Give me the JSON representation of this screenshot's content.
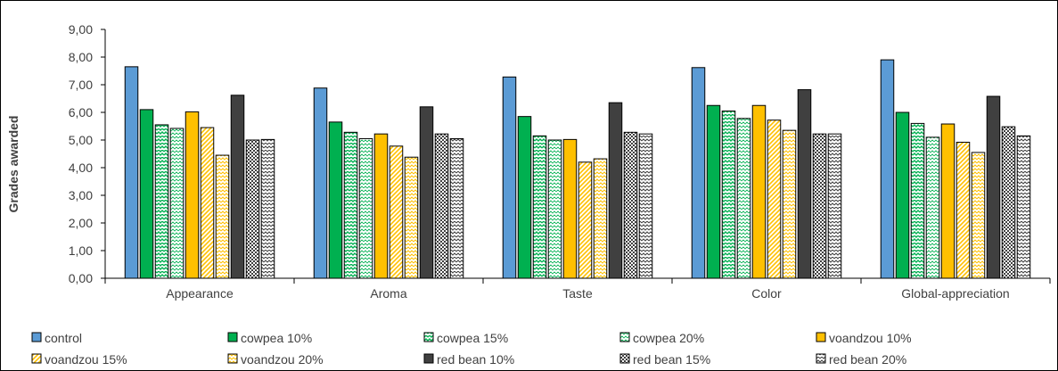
{
  "chart_data": {
    "type": "bar",
    "title": "",
    "xlabel": "",
    "ylabel": "Grades awarded",
    "ylim": [
      0,
      9
    ],
    "y_ticks": [
      "0,00",
      "1,00",
      "2,00",
      "3,00",
      "4,00",
      "5,00",
      "6,00",
      "7,00",
      "8,00",
      "9,00"
    ],
    "grid": false,
    "legend_position": "bottom",
    "categories": [
      "Appearance",
      "Aroma",
      "Taste",
      "Color",
      "Global-appreciation"
    ],
    "series": [
      {
        "name": "control",
        "values": [
          7.65,
          6.88,
          7.28,
          7.62,
          7.9
        ],
        "color": "#5b9bd5",
        "pattern": "solid"
      },
      {
        "name": "cowpea 10%",
        "values": [
          6.1,
          5.65,
          5.85,
          6.25,
          6.0
        ],
        "color": "#00b050",
        "pattern": "solid"
      },
      {
        "name": "cowpea 15%",
        "values": [
          5.55,
          5.28,
          5.15,
          6.05,
          5.6
        ],
        "color": "#00b050",
        "pattern": "zigzag"
      },
      {
        "name": "cowpea 20%",
        "values": [
          5.42,
          5.05,
          5.0,
          5.78,
          5.1
        ],
        "color": "#00b050",
        "pattern": "zigzag-light"
      },
      {
        "name": "voandzou 10%",
        "values": [
          6.02,
          5.22,
          5.02,
          6.25,
          5.58
        ],
        "color": "#ffc000",
        "pattern": "solid"
      },
      {
        "name": "voandzou 15%",
        "values": [
          5.45,
          4.78,
          4.2,
          5.72,
          4.92
        ],
        "color": "#ffc000",
        "pattern": "diagonal"
      },
      {
        "name": "voandzou 20%",
        "values": [
          4.45,
          4.38,
          4.32,
          5.35,
          4.55
        ],
        "color": "#ffc000",
        "pattern": "zigzag-light"
      },
      {
        "name": "red bean 10%",
        "values": [
          6.62,
          6.2,
          6.35,
          6.82,
          6.58
        ],
        "color": "#404040",
        "pattern": "solid"
      },
      {
        "name": "red bean 15%",
        "values": [
          5.0,
          5.22,
          5.28,
          5.22,
          5.48
        ],
        "color": "#404040",
        "pattern": "checker"
      },
      {
        "name": "red bean 20%",
        "values": [
          5.02,
          5.05,
          5.22,
          5.22,
          5.15
        ],
        "color": "#404040",
        "pattern": "zigzag"
      }
    ]
  }
}
